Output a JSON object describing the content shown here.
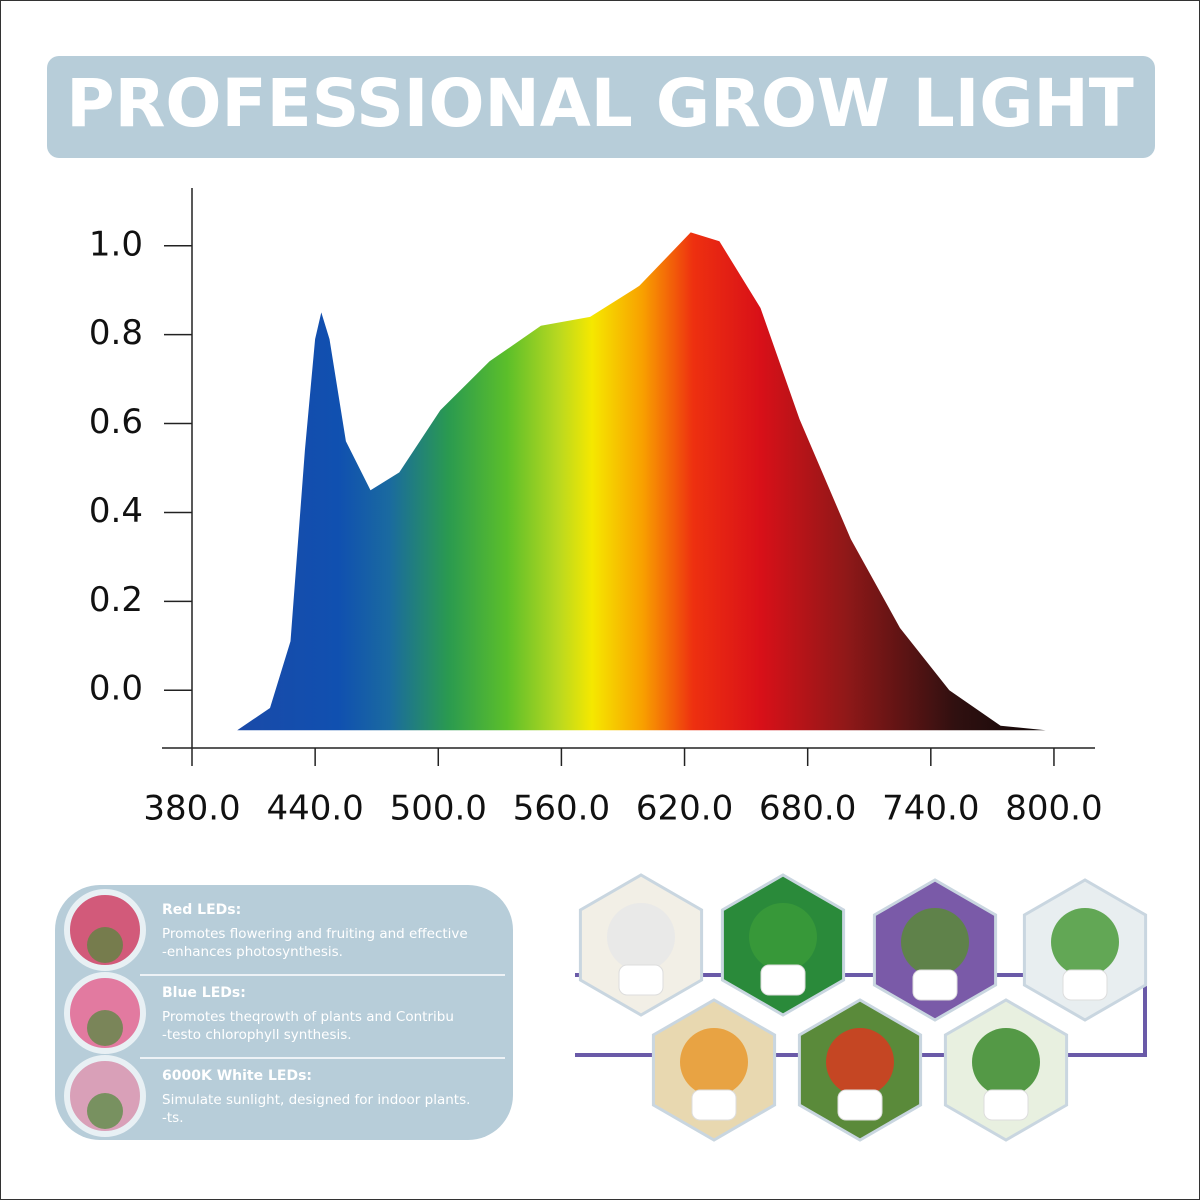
{
  "header": {
    "title": "PROFESSIONAL GROW LIGHT"
  },
  "chart_data": {
    "type": "area",
    "x": [
      402,
      418,
      428,
      435,
      440,
      443,
      447,
      455,
      467,
      481,
      501,
      525,
      550,
      574,
      598,
      623,
      637,
      657,
      676,
      701,
      725,
      749,
      774,
      796,
      814
    ],
    "values": [
      -0.09,
      -0.04,
      0.11,
      0.54,
      0.79,
      0.85,
      0.79,
      0.56,
      0.45,
      0.49,
      0.63,
      0.74,
      0.82,
      0.84,
      0.91,
      1.03,
      1.01,
      0.86,
      0.61,
      0.34,
      0.14,
      0.0,
      -0.08,
      -0.09,
      -0.09
    ],
    "xlim": [
      380,
      820
    ],
    "ylim": [
      -0.13,
      1.13
    ],
    "xticks": [
      {
        "value": 380,
        "label": "380.0"
      },
      {
        "value": 440,
        "label": "440.0"
      },
      {
        "value": 500,
        "label": "500.0"
      },
      {
        "value": 560,
        "label": "560.0"
      },
      {
        "value": 620,
        "label": "620.0"
      },
      {
        "value": 680,
        "label": "680.0"
      },
      {
        "value": 740,
        "label": "740.0"
      },
      {
        "value": 800,
        "label": "800.0"
      }
    ],
    "yticks": [
      {
        "value": 0,
        "label": "0.0"
      },
      0.2,
      0.4,
      0.6,
      0.8,
      {
        "value": 1,
        "label": "1.0"
      }
    ]
  },
  "leds": [
    {
      "title": "Red LEDs:",
      "lines": [
        "Promotes flowering and fruiting and effective",
        "-enhances photosynthesis."
      ]
    },
    {
      "title": "Blue LEDs:",
      "lines": [
        "Promotes theqrowth of plants and Contribu",
        "-testo chlorophyll synthesis."
      ]
    },
    {
      "title": "6000K White LEDs:",
      "lines": [
        "Simulate sunlight, designed for indoor plants.",
        "-ts."
      ]
    }
  ]
}
